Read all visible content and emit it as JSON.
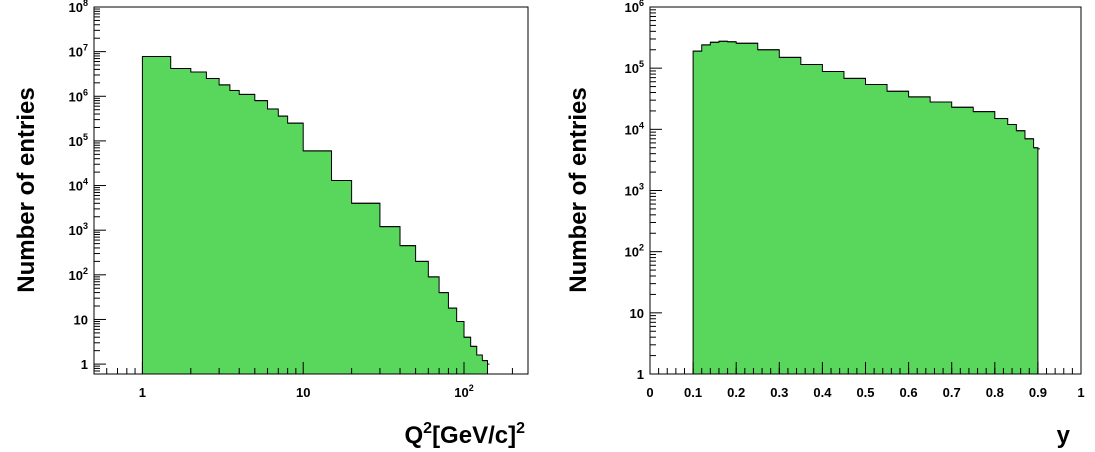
{
  "chart_data": [
    {
      "type": "area",
      "style": "histogram",
      "xlabel": "Q^2[GeV/c]^2",
      "xlabel_base": "Q",
      "xlabel_exp": "2",
      "xlabel_unit": "[GeV/c]",
      "xlabel_unit_exp": "2",
      "ylabel": "Number of entries",
      "x_scale": "log",
      "y_scale": "log",
      "xlim": [
        0.5,
        250
      ],
      "ylim": [
        0.6,
        100000000
      ],
      "x_ticks": [
        {
          "value": 1,
          "label": "1"
        },
        {
          "value": 10,
          "label": "10"
        },
        {
          "value": 100,
          "label": "10",
          "exp": "2"
        }
      ],
      "y_ticks": [
        {
          "value": 1,
          "label": "1"
        },
        {
          "value": 10,
          "label": "10"
        },
        {
          "value": 100,
          "label": "10",
          "exp": "2"
        },
        {
          "value": 1000,
          "label": "10",
          "exp": "3"
        },
        {
          "value": 10000,
          "label": "10",
          "exp": "4"
        },
        {
          "value": 100000,
          "label": "10",
          "exp": "5"
        },
        {
          "value": 1000000,
          "label": "10",
          "exp": "6"
        },
        {
          "value": 10000000,
          "label": "10",
          "exp": "7"
        },
        {
          "value": 100000000,
          "label": "10",
          "exp": "8"
        }
      ],
      "fill_color": "#59d65c",
      "line_color": "#000000",
      "x": [
        1.0,
        1.5,
        2.0,
        2.5,
        3.0,
        3.5,
        4.0,
        5.0,
        6.0,
        7.0,
        8.0,
        10.0,
        15.0,
        20.0,
        30.0,
        40.0,
        50.0,
        60.0,
        70.0,
        80.0,
        90.0,
        100.0,
        110.0,
        120.0,
        130.0,
        140.0
      ],
      "y": [
        7800000,
        4200000,
        3500000,
        2500000,
        1800000,
        1350000,
        1100000,
        800000,
        520000,
        360000,
        250000,
        60000,
        13000,
        4000,
        1200,
        450,
        200,
        90,
        40,
        18,
        9,
        4,
        2.5,
        1.6,
        1.2,
        1
      ]
    },
    {
      "type": "area",
      "style": "histogram",
      "xlabel": "y",
      "ylabel": "Number of entries",
      "x_scale": "linear",
      "y_scale": "log",
      "xlim": [
        0,
        1
      ],
      "ylim": [
        1,
        1000000
      ],
      "x_ticks": [
        {
          "value": 0,
          "label": "0"
        },
        {
          "value": 0.1,
          "label": "0.1"
        },
        {
          "value": 0.2,
          "label": "0.2"
        },
        {
          "value": 0.3,
          "label": "0.3"
        },
        {
          "value": 0.4,
          "label": "0.4"
        },
        {
          "value": 0.5,
          "label": "0.5"
        },
        {
          "value": 0.6,
          "label": "0.6"
        },
        {
          "value": 0.7,
          "label": "0.7"
        },
        {
          "value": 0.8,
          "label": "0.8"
        },
        {
          "value": 0.9,
          "label": "0.9"
        },
        {
          "value": 1,
          "label": "1"
        }
      ],
      "y_ticks": [
        {
          "value": 1,
          "label": "1"
        },
        {
          "value": 10,
          "label": "10"
        },
        {
          "value": 100,
          "label": "10",
          "exp": "2"
        },
        {
          "value": 1000,
          "label": "10",
          "exp": "3"
        },
        {
          "value": 10000,
          "label": "10",
          "exp": "4"
        },
        {
          "value": 100000,
          "label": "10",
          "exp": "5"
        },
        {
          "value": 1000000,
          "label": "10",
          "exp": "6"
        }
      ],
      "fill_color": "#59d65c",
      "line_color": "#000000",
      "x": [
        0.1,
        0.12,
        0.14,
        0.16,
        0.18,
        0.2,
        0.25,
        0.3,
        0.35,
        0.4,
        0.45,
        0.5,
        0.55,
        0.6,
        0.65,
        0.7,
        0.75,
        0.8,
        0.83,
        0.85,
        0.87,
        0.89,
        0.9
      ],
      "y": [
        190000,
        240000,
        265000,
        275000,
        270000,
        255000,
        200000,
        150000,
        115000,
        88000,
        68000,
        54000,
        42000,
        34000,
        28000,
        23000,
        19500,
        15000,
        12000,
        9500,
        7000,
        5000,
        4800
      ]
    }
  ]
}
